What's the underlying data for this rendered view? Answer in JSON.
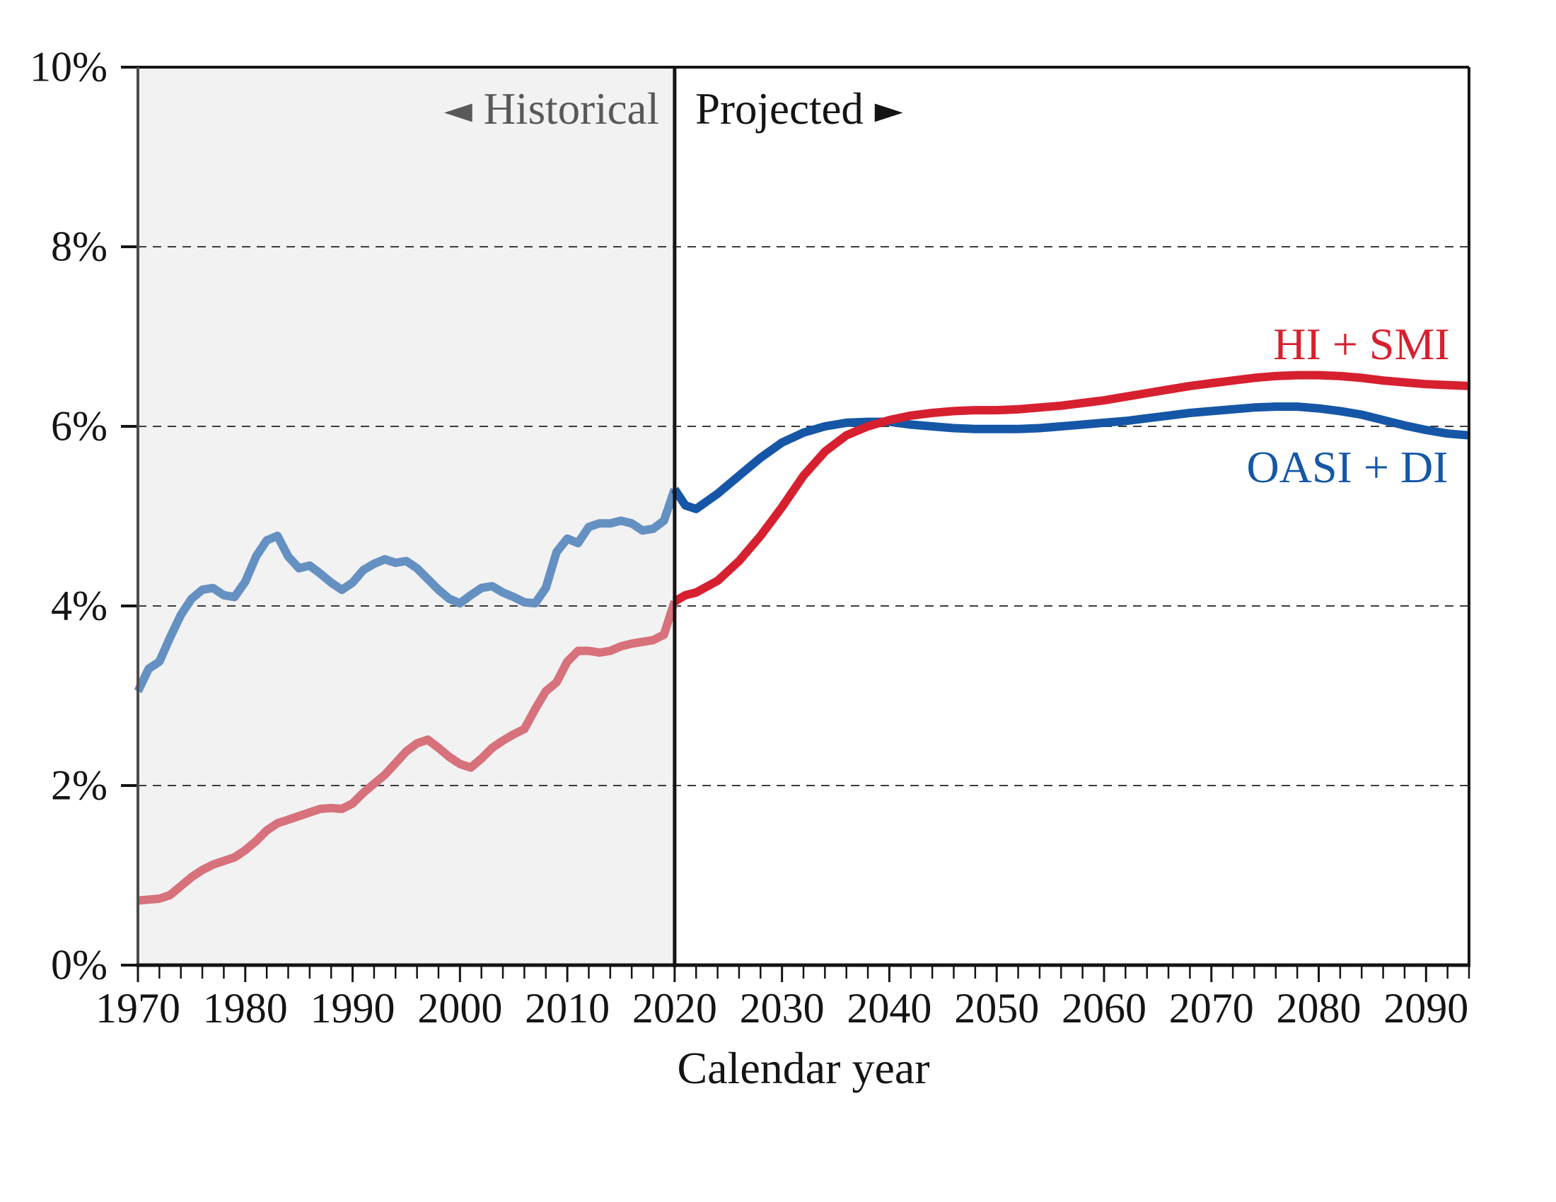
{
  "annotations": {
    "historical": {
      "arrow": "◄",
      "label": "Historical"
    },
    "projected": {
      "label": "Projected",
      "arrow": "►"
    }
  },
  "colors": {
    "historical_region_bg": "#f2f2f2",
    "gridline": "#3c3c3c",
    "axis_left": "#4c4c4c",
    "frame": "#141414",
    "divider": "#141414",
    "historical_text": "#595959",
    "oasi_di_projected": "#1557a6",
    "oasi_di_historical": "#6590c2",
    "hi_smi_projected": "#d7202f",
    "hi_smi_historical": "#d7717b"
  },
  "chart_data": {
    "type": "line",
    "title": "",
    "xlabel": "Calendar year",
    "ylabel": "",
    "x_range": [
      1970,
      2094
    ],
    "y_range": [
      0,
      10
    ],
    "x_ticks": [
      1970,
      1980,
      1990,
      2000,
      2010,
      2020,
      2030,
      2040,
      2050,
      2060,
      2070,
      2080,
      2090
    ],
    "x_minor_tick_step": 2,
    "y_tick_values": [
      0,
      2,
      4,
      6,
      8,
      10
    ],
    "y_tick_labels": [
      "0%",
      "2%",
      "4%",
      "6%",
      "8%",
      "10%"
    ],
    "grid_y_values": [
      2,
      4,
      6,
      8
    ],
    "split_year": 2020,
    "regions": {
      "historical": [
        1970,
        2020
      ],
      "projected": [
        2020,
        2094
      ]
    },
    "series": [
      {
        "id": "oasi_di",
        "name": "OASI + DI",
        "color_historical": "#6590c2",
        "color_projected": "#1557a6",
        "points": [
          [
            1970,
            3.05
          ],
          [
            1971,
            3.3
          ],
          [
            1972,
            3.38
          ],
          [
            1973,
            3.65
          ],
          [
            1974,
            3.9
          ],
          [
            1975,
            4.08
          ],
          [
            1976,
            4.18
          ],
          [
            1977,
            4.2
          ],
          [
            1978,
            4.12
          ],
          [
            1979,
            4.1
          ],
          [
            1980,
            4.27
          ],
          [
            1981,
            4.55
          ],
          [
            1982,
            4.73
          ],
          [
            1983,
            4.78
          ],
          [
            1984,
            4.55
          ],
          [
            1985,
            4.42
          ],
          [
            1986,
            4.45
          ],
          [
            1987,
            4.36
          ],
          [
            1988,
            4.26
          ],
          [
            1989,
            4.18
          ],
          [
            1990,
            4.26
          ],
          [
            1991,
            4.4
          ],
          [
            1992,
            4.47
          ],
          [
            1993,
            4.52
          ],
          [
            1994,
            4.48
          ],
          [
            1995,
            4.5
          ],
          [
            1996,
            4.42
          ],
          [
            1997,
            4.3
          ],
          [
            1998,
            4.18
          ],
          [
            1999,
            4.08
          ],
          [
            2000,
            4.03
          ],
          [
            2001,
            4.12
          ],
          [
            2002,
            4.2
          ],
          [
            2003,
            4.22
          ],
          [
            2004,
            4.15
          ],
          [
            2005,
            4.1
          ],
          [
            2006,
            4.04
          ],
          [
            2007,
            4.03
          ],
          [
            2008,
            4.2
          ],
          [
            2009,
            4.6
          ],
          [
            2010,
            4.75
          ],
          [
            2011,
            4.7
          ],
          [
            2012,
            4.88
          ],
          [
            2013,
            4.92
          ],
          [
            2014,
            4.92
          ],
          [
            2015,
            4.95
          ],
          [
            2016,
            4.92
          ],
          [
            2017,
            4.84
          ],
          [
            2018,
            4.86
          ],
          [
            2019,
            4.95
          ],
          [
            2020,
            5.3
          ],
          [
            2021,
            5.12
          ],
          [
            2022,
            5.08
          ],
          [
            2024,
            5.25
          ],
          [
            2026,
            5.45
          ],
          [
            2028,
            5.65
          ],
          [
            2030,
            5.82
          ],
          [
            2032,
            5.93
          ],
          [
            2034,
            6.0
          ],
          [
            2036,
            6.04
          ],
          [
            2038,
            6.05
          ],
          [
            2040,
            6.05
          ],
          [
            2042,
            6.02
          ],
          [
            2044,
            6.0
          ],
          [
            2046,
            5.98
          ],
          [
            2048,
            5.97
          ],
          [
            2050,
            5.97
          ],
          [
            2052,
            5.97
          ],
          [
            2054,
            5.98
          ],
          [
            2056,
            6.0
          ],
          [
            2058,
            6.02
          ],
          [
            2060,
            6.04
          ],
          [
            2062,
            6.06
          ],
          [
            2064,
            6.09
          ],
          [
            2066,
            6.12
          ],
          [
            2068,
            6.15
          ],
          [
            2070,
            6.17
          ],
          [
            2072,
            6.19
          ],
          [
            2074,
            6.21
          ],
          [
            2076,
            6.22
          ],
          [
            2078,
            6.22
          ],
          [
            2080,
            6.2
          ],
          [
            2082,
            6.17
          ],
          [
            2084,
            6.13
          ],
          [
            2086,
            6.07
          ],
          [
            2088,
            6.01
          ],
          [
            2090,
            5.96
          ],
          [
            2092,
            5.92
          ],
          [
            2094,
            5.9
          ]
        ]
      },
      {
        "id": "hi_smi",
        "name": "HI + SMI",
        "color_historical": "#d7717b",
        "color_projected": "#d7202f",
        "points": [
          [
            1970,
            0.72
          ],
          [
            1971,
            0.73
          ],
          [
            1972,
            0.74
          ],
          [
            1973,
            0.78
          ],
          [
            1974,
            0.88
          ],
          [
            1975,
            0.98
          ],
          [
            1976,
            1.06
          ],
          [
            1977,
            1.12
          ],
          [
            1978,
            1.16
          ],
          [
            1979,
            1.2
          ],
          [
            1980,
            1.28
          ],
          [
            1981,
            1.38
          ],
          [
            1982,
            1.5
          ],
          [
            1983,
            1.58
          ],
          [
            1984,
            1.62
          ],
          [
            1985,
            1.66
          ],
          [
            1986,
            1.7
          ],
          [
            1987,
            1.74
          ],
          [
            1988,
            1.75
          ],
          [
            1989,
            1.74
          ],
          [
            1990,
            1.8
          ],
          [
            1991,
            1.92
          ],
          [
            1992,
            2.02
          ],
          [
            1993,
            2.12
          ],
          [
            1994,
            2.25
          ],
          [
            1995,
            2.38
          ],
          [
            1996,
            2.47
          ],
          [
            1997,
            2.51
          ],
          [
            1998,
            2.42
          ],
          [
            1999,
            2.32
          ],
          [
            2000,
            2.24
          ],
          [
            2001,
            2.2
          ],
          [
            2002,
            2.3
          ],
          [
            2003,
            2.42
          ],
          [
            2004,
            2.5
          ],
          [
            2005,
            2.57
          ],
          [
            2006,
            2.63
          ],
          [
            2007,
            2.85
          ],
          [
            2008,
            3.05
          ],
          [
            2009,
            3.15
          ],
          [
            2010,
            3.38
          ],
          [
            2011,
            3.5
          ],
          [
            2012,
            3.5
          ],
          [
            2013,
            3.48
          ],
          [
            2014,
            3.5
          ],
          [
            2015,
            3.55
          ],
          [
            2016,
            3.58
          ],
          [
            2017,
            3.6
          ],
          [
            2018,
            3.62
          ],
          [
            2019,
            3.68
          ],
          [
            2020,
            4.05
          ],
          [
            2021,
            4.12
          ],
          [
            2022,
            4.15
          ],
          [
            2024,
            4.28
          ],
          [
            2026,
            4.5
          ],
          [
            2028,
            4.78
          ],
          [
            2030,
            5.1
          ],
          [
            2032,
            5.45
          ],
          [
            2034,
            5.72
          ],
          [
            2036,
            5.9
          ],
          [
            2038,
            6.0
          ],
          [
            2040,
            6.07
          ],
          [
            2042,
            6.12
          ],
          [
            2044,
            6.15
          ],
          [
            2046,
            6.17
          ],
          [
            2048,
            6.18
          ],
          [
            2050,
            6.18
          ],
          [
            2052,
            6.19
          ],
          [
            2054,
            6.21
          ],
          [
            2056,
            6.23
          ],
          [
            2058,
            6.26
          ],
          [
            2060,
            6.29
          ],
          [
            2062,
            6.33
          ],
          [
            2064,
            6.37
          ],
          [
            2066,
            6.41
          ],
          [
            2068,
            6.45
          ],
          [
            2070,
            6.48
          ],
          [
            2072,
            6.51
          ],
          [
            2074,
            6.54
          ],
          [
            2076,
            6.56
          ],
          [
            2078,
            6.57
          ],
          [
            2080,
            6.57
          ],
          [
            2082,
            6.56
          ],
          [
            2084,
            6.54
          ],
          [
            2086,
            6.51
          ],
          [
            2088,
            6.49
          ],
          [
            2090,
            6.47
          ],
          [
            2092,
            6.46
          ],
          [
            2094,
            6.45
          ]
        ]
      }
    ]
  }
}
